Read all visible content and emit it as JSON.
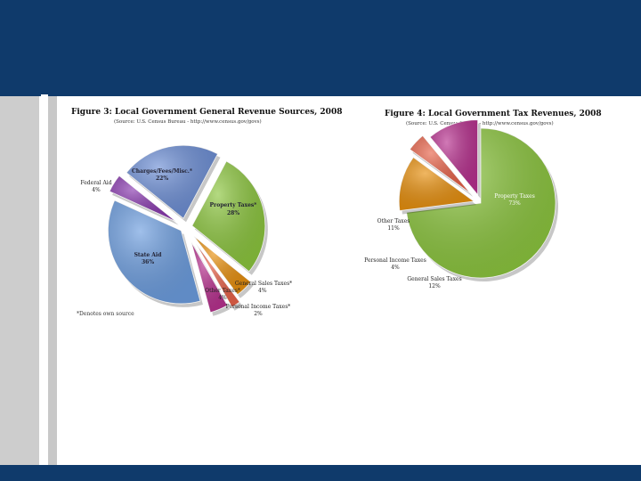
{
  "chart_data": [
    {
      "type": "pie",
      "title": "Figure 3: Local Government General Revenue Sources, 2008",
      "subtitle": "(Source: U.S. Census Bureau - http://www.census.gov/govs)",
      "footnote": "*Denotes own source",
      "slices": [
        {
          "label": "Property Taxes*",
          "value": 28,
          "pct": "28%",
          "color": "#8cc63e"
        },
        {
          "label": "General Sales Taxes*",
          "value": 4,
          "pct": "4%",
          "color": "#e8900e"
        },
        {
          "label": "Personal Income Taxes*",
          "value": 2,
          "pct": "2%",
          "color": "#e8634a"
        },
        {
          "label": "Other Taxes*",
          "value": 4,
          "pct": "4%",
          "color": "#b8318f"
        },
        {
          "label": "State Aid",
          "value": 36,
          "pct": "36%",
          "color": "#6d9ee0"
        },
        {
          "label": "Federal Aid",
          "value": 4,
          "pct": "4%",
          "color": "#8a3ab0"
        },
        {
          "label": "Charges/Fees/Misc.*",
          "value": 22,
          "pct": "22%",
          "color": "#6d8fd6"
        }
      ]
    },
    {
      "type": "pie",
      "title": "Figure 4: Local Government Tax Revenues, 2008",
      "subtitle": "(Source: U.S. Census Bureau - http://www.census.gov/govs)",
      "slices": [
        {
          "label": "Property Taxes",
          "value": 73,
          "pct": "73%",
          "color": "#8cc63e"
        },
        {
          "label": "General Sales Taxes",
          "value": 12,
          "pct": "12%",
          "color": "#e8900e"
        },
        {
          "label": "Personal Income Taxes",
          "value": 4,
          "pct": "4%",
          "color": "#e8634a"
        },
        {
          "label": "Other Taxes",
          "value": 11,
          "pct": "11%",
          "color": "#b8318f"
        }
      ]
    }
  ]
}
